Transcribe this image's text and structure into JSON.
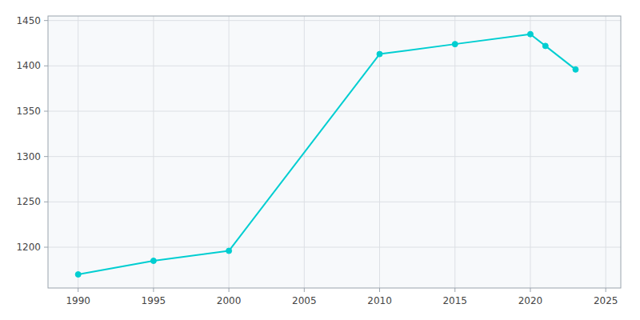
{
  "chart_data": {
    "type": "line",
    "x": [
      1990,
      1995,
      2000,
      2010,
      2015,
      2020,
      2021,
      2023
    ],
    "values": [
      1170,
      1185,
      1196,
      1413,
      1424,
      1435,
      1422,
      1396
    ],
    "color": "#00CED1",
    "marker": "circle",
    "xlim": [
      1988,
      2026
    ],
    "ylim": [
      1155,
      1455
    ],
    "xticks": [
      1990,
      1995,
      2000,
      2005,
      2010,
      2015,
      2020,
      2025
    ],
    "yticks": [
      1200,
      1250,
      1300,
      1350,
      1400,
      1450
    ],
    "grid": true
  }
}
